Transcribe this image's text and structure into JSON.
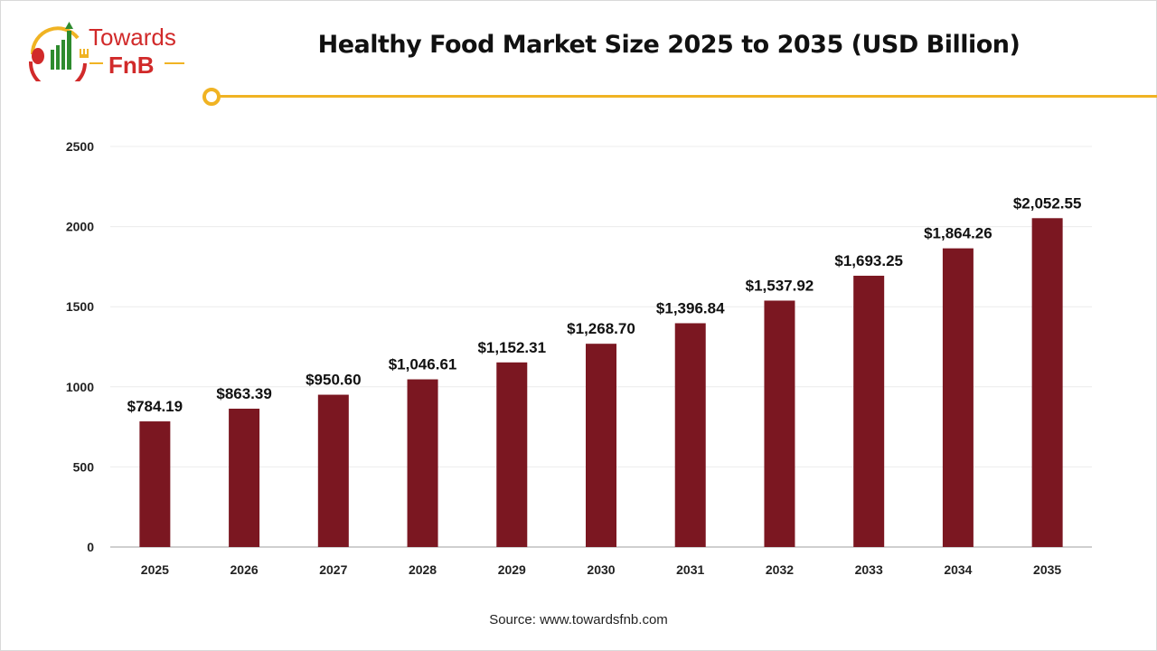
{
  "logo": {
    "line1": "Towards",
    "line2": "FnB"
  },
  "title": "Healthy Food Market Size 2025 to 2035 (USD Billion)",
  "source": "Source: www.towardsfnb.com",
  "colors": {
    "bar": "#7b1721",
    "accent": "#f0b323",
    "grid": "#ececec"
  },
  "chart_data": {
    "type": "bar",
    "title": "Healthy Food Market Size 2025 to 2035 (USD Billion)",
    "categories": [
      "2025",
      "2026",
      "2027",
      "2028",
      "2029",
      "2030",
      "2031",
      "2032",
      "2033",
      "2034",
      "2035"
    ],
    "values": [
      784.19,
      863.39,
      950.6,
      1046.61,
      1152.31,
      1268.7,
      1396.84,
      1537.92,
      1693.25,
      1864.26,
      2052.55
    ],
    "data_labels": [
      "$784.19",
      "$863.39",
      "$950.60",
      "$1,046.61",
      "$1,152.31",
      "$1,268.70",
      "$1,396.84",
      "$1,537.92",
      "$1,693.25",
      "$1,864.26",
      "$2,052.55"
    ],
    "ylim": [
      0,
      2500
    ],
    "yticks": [
      "0",
      "500",
      "1000",
      "1500",
      "2000",
      "2500"
    ],
    "xlabel": "",
    "ylabel": "",
    "grid": true
  }
}
